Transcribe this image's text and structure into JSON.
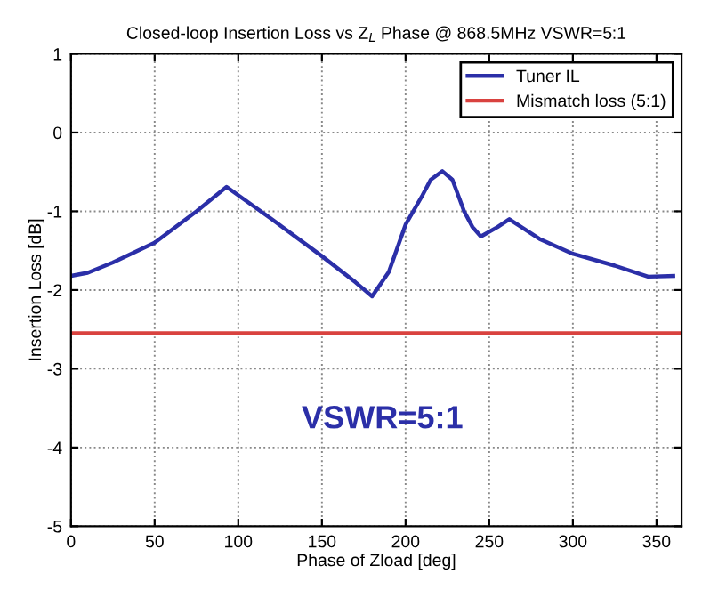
{
  "chart_data": {
    "type": "line",
    "title": "Closed-loop Insertion Loss vs Z$_{L}$ Phase @ 868.5MHz VSWR=5:1",
    "xlabel": "Phase of Zload [deg]",
    "ylabel": "Insertion Loss [dB]",
    "series": [
      {
        "name": "Tuner IL",
        "color": "#2b2fa8",
        "x": [
          0,
          10,
          25,
          50,
          75,
          93,
          120,
          150,
          170,
          180,
          190,
          200,
          210,
          215,
          222,
          228,
          235,
          240,
          245,
          255,
          262,
          280,
          300,
          325,
          345,
          360
        ],
        "values": [
          -1.82,
          -1.78,
          -1.65,
          -1.4,
          -1.0,
          -0.69,
          -1.1,
          -1.57,
          -1.9,
          -2.08,
          -1.77,
          -1.17,
          -0.8,
          -0.6,
          -0.49,
          -0.6,
          -1.0,
          -1.2,
          -1.32,
          -1.2,
          -1.1,
          -1.35,
          -1.54,
          -1.69,
          -1.83,
          -1.82
        ]
      },
      {
        "name": "Mismatch loss (5:1)",
        "color": "#d9423f",
        "x": [
          0,
          365
        ],
        "values": [
          -2.55,
          -2.55
        ]
      }
    ],
    "annotations": [
      "VSWR=5:1"
    ],
    "xlim": [
      0,
      365
    ],
    "ylim": [
      -5,
      1
    ],
    "xticks": [
      0,
      50,
      100,
      150,
      200,
      250,
      300,
      350
    ],
    "yticks": [
      -5,
      -4,
      -3,
      -2,
      -1,
      0,
      1
    ],
    "grid": true,
    "legend": "top right",
    "marker": "none",
    "line_style": "solid"
  }
}
